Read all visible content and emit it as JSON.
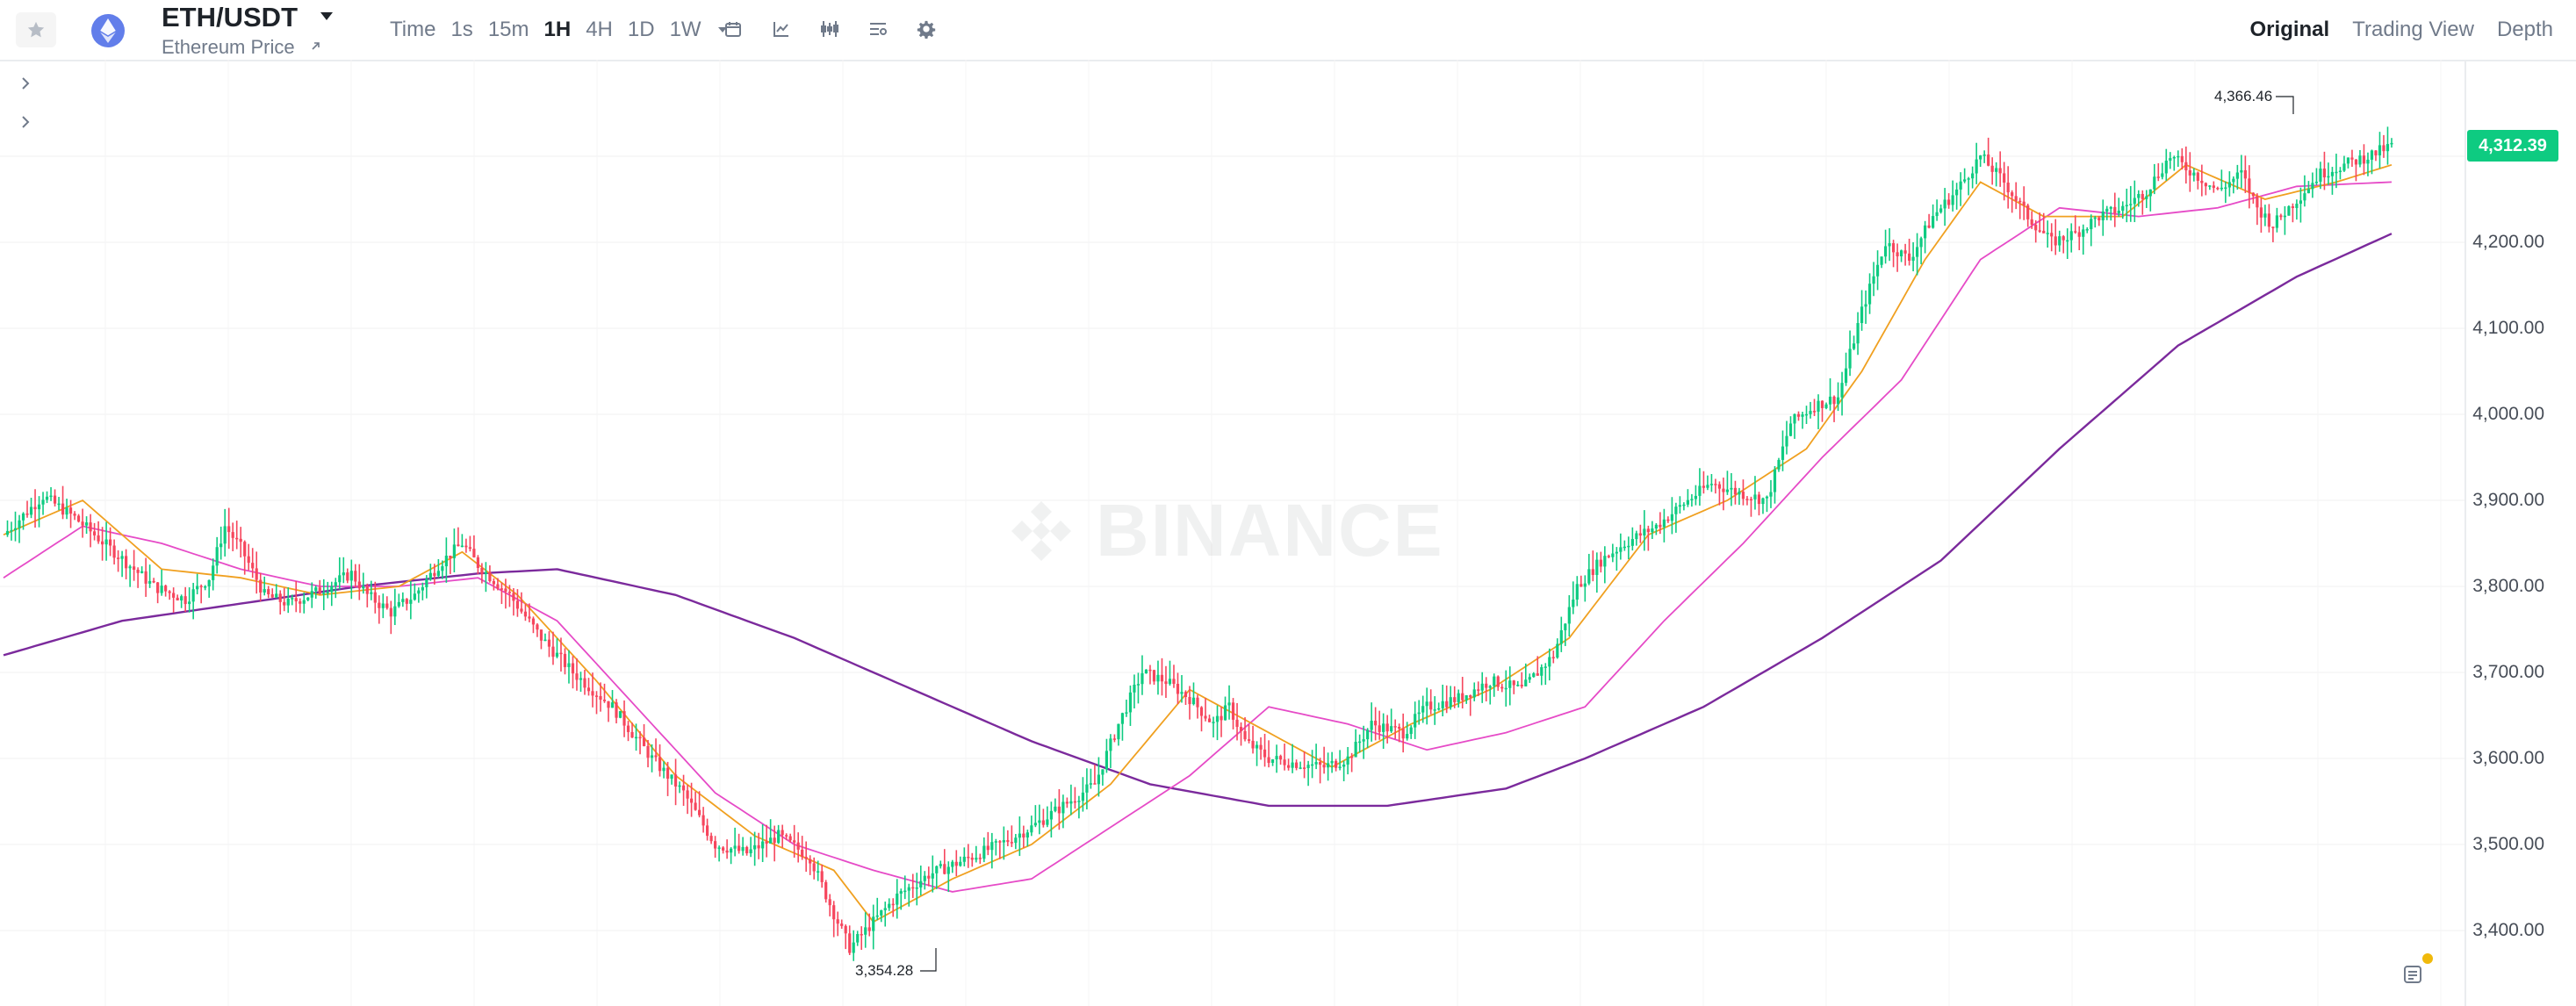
{
  "header": {
    "pair": "ETH/USDT",
    "subtitle": "Ethereum Price",
    "intervals": [
      "Time",
      "1s",
      "15m",
      "1H",
      "4H",
      "1D",
      "1W"
    ],
    "active_interval": "1H",
    "views": [
      "Original",
      "Trading View",
      "Depth"
    ],
    "active_view": "Original"
  },
  "icons": {
    "favorite": "star-icon",
    "coin": "ethereum-logo-icon",
    "pair_menu": "caret-down-icon",
    "external": "external-link-icon",
    "more_intervals": "caret-down-icon",
    "tools": [
      "calendar-icon",
      "indicator-icon",
      "candlestick-type-icon",
      "chart-settings-list-icon",
      "gear-icon"
    ],
    "side": [
      "chevron-right-icon",
      "chevron-right-icon"
    ],
    "corner": "orders-list-icon"
  },
  "colors": {
    "up": "#0ecb81",
    "down": "#f6465d",
    "ma_fast": "#f0a020",
    "ma_mid": "#e64bc7",
    "ma_slow": "#7b2a9c"
  },
  "chart": {
    "y_ticks": [
      "4,200.00",
      "4,100.00",
      "4,000.00",
      "3,900.00",
      "3,800.00",
      "3,700.00",
      "3,600.00",
      "3,500.00",
      "3,400.00"
    ],
    "current_price": "4,312.39",
    "high_label": "4,366.46",
    "low_label": "3,354.28",
    "watermark": "BINANCE"
  },
  "chart_data": {
    "type": "candlestick",
    "interval": "1H",
    "y_range": [
      3330,
      4390
    ],
    "close_path": [
      [
        0,
        3860
      ],
      [
        10,
        3905
      ],
      [
        18,
        3880
      ],
      [
        28,
        3840
      ],
      [
        38,
        3800
      ],
      [
        46,
        3785
      ],
      [
        52,
        3810
      ],
      [
        56,
        3870
      ],
      [
        60,
        3845
      ],
      [
        66,
        3790
      ],
      [
        72,
        3780
      ],
      [
        80,
        3795
      ],
      [
        88,
        3815
      ],
      [
        92,
        3790
      ],
      [
        98,
        3770
      ],
      [
        104,
        3790
      ],
      [
        110,
        3825
      ],
      [
        116,
        3850
      ],
      [
        120,
        3825
      ],
      [
        128,
        3790
      ],
      [
        136,
        3740
      ],
      [
        144,
        3700
      ],
      [
        154,
        3660
      ],
      [
        164,
        3600
      ],
      [
        172,
        3560
      ],
      [
        180,
        3500
      ],
      [
        188,
        3490
      ],
      [
        196,
        3510
      ],
      [
        204,
        3485
      ],
      [
        210,
        3420
      ],
      [
        214,
        3380
      ],
      [
        218,
        3400
      ],
      [
        226,
        3440
      ],
      [
        234,
        3465
      ],
      [
        242,
        3480
      ],
      [
        252,
        3500
      ],
      [
        260,
        3520
      ],
      [
        268,
        3545
      ],
      [
        276,
        3570
      ],
      [
        282,
        3640
      ],
      [
        288,
        3700
      ],
      [
        294,
        3690
      ],
      [
        300,
        3670
      ],
      [
        306,
        3640
      ],
      [
        310,
        3660
      ],
      [
        314,
        3620
      ],
      [
        320,
        3600
      ],
      [
        326,
        3595
      ],
      [
        334,
        3590
      ],
      [
        340,
        3600
      ],
      [
        346,
        3640
      ],
      [
        354,
        3630
      ],
      [
        360,
        3660
      ],
      [
        368,
        3670
      ],
      [
        376,
        3690
      ],
      [
        384,
        3680
      ],
      [
        392,
        3720
      ],
      [
        398,
        3800
      ],
      [
        404,
        3830
      ],
      [
        410,
        3850
      ],
      [
        418,
        3870
      ],
      [
        426,
        3900
      ],
      [
        432,
        3920
      ],
      [
        438,
        3910
      ],
      [
        446,
        3900
      ],
      [
        452,
        3990
      ],
      [
        458,
        4010
      ],
      [
        464,
        4020
      ],
      [
        470,
        4120
      ],
      [
        476,
        4200
      ],
      [
        482,
        4180
      ],
      [
        488,
        4230
      ],
      [
        494,
        4260
      ],
      [
        500,
        4300
      ],
      [
        506,
        4270
      ],
      [
        512,
        4230
      ],
      [
        518,
        4200
      ],
      [
        524,
        4210
      ],
      [
        530,
        4230
      ],
      [
        536,
        4240
      ],
      [
        542,
        4260
      ],
      [
        548,
        4300
      ],
      [
        554,
        4280
      ],
      [
        560,
        4260
      ],
      [
        566,
        4280
      ],
      [
        570,
        4240
      ],
      [
        574,
        4220
      ],
      [
        580,
        4250
      ],
      [
        586,
        4280
      ],
      [
        592,
        4290
      ],
      [
        598,
        4300
      ],
      [
        604,
        4312
      ]
    ],
    "ma_fast": [
      [
        0,
        3860
      ],
      [
        20,
        3900
      ],
      [
        40,
        3820
      ],
      [
        60,
        3810
      ],
      [
        80,
        3790
      ],
      [
        100,
        3800
      ],
      [
        116,
        3840
      ],
      [
        130,
        3790
      ],
      [
        150,
        3690
      ],
      [
        170,
        3580
      ],
      [
        190,
        3510
      ],
      [
        210,
        3470
      ],
      [
        220,
        3410
      ],
      [
        240,
        3460
      ],
      [
        260,
        3500
      ],
      [
        280,
        3570
      ],
      [
        300,
        3680
      ],
      [
        316,
        3640
      ],
      [
        336,
        3590
      ],
      [
        356,
        3640
      ],
      [
        376,
        3680
      ],
      [
        396,
        3740
      ],
      [
        416,
        3860
      ],
      [
        436,
        3900
      ],
      [
        456,
        3960
      ],
      [
        470,
        4050
      ],
      [
        486,
        4180
      ],
      [
        500,
        4270
      ],
      [
        516,
        4230
      ],
      [
        536,
        4230
      ],
      [
        552,
        4290
      ],
      [
        572,
        4250
      ],
      [
        590,
        4270
      ],
      [
        604,
        4290
      ]
    ],
    "ma_mid": [
      [
        0,
        3810
      ],
      [
        20,
        3870
      ],
      [
        40,
        3850
      ],
      [
        60,
        3820
      ],
      [
        80,
        3800
      ],
      [
        100,
        3800
      ],
      [
        120,
        3810
      ],
      [
        140,
        3760
      ],
      [
        160,
        3660
      ],
      [
        180,
        3560
      ],
      [
        200,
        3500
      ],
      [
        220,
        3470
      ],
      [
        240,
        3445
      ],
      [
        260,
        3460
      ],
      [
        280,
        3520
      ],
      [
        300,
        3580
      ],
      [
        320,
        3660
      ],
      [
        340,
        3640
      ],
      [
        360,
        3610
      ],
      [
        380,
        3630
      ],
      [
        400,
        3660
      ],
      [
        420,
        3760
      ],
      [
        440,
        3850
      ],
      [
        460,
        3950
      ],
      [
        480,
        4040
      ],
      [
        500,
        4180
      ],
      [
        520,
        4240
      ],
      [
        540,
        4230
      ],
      [
        560,
        4240
      ],
      [
        580,
        4265
      ],
      [
        604,
        4270
      ]
    ],
    "ma_slow": [
      [
        0,
        3720
      ],
      [
        30,
        3760
      ],
      [
        60,
        3780
      ],
      [
        90,
        3800
      ],
      [
        120,
        3815
      ],
      [
        140,
        3820
      ],
      [
        170,
        3790
      ],
      [
        200,
        3740
      ],
      [
        230,
        3680
      ],
      [
        260,
        3620
      ],
      [
        290,
        3570
      ],
      [
        320,
        3545
      ],
      [
        350,
        3545
      ],
      [
        380,
        3565
      ],
      [
        400,
        3600
      ],
      [
        430,
        3660
      ],
      [
        460,
        3740
      ],
      [
        490,
        3830
      ],
      [
        520,
        3960
      ],
      [
        550,
        4080
      ],
      [
        580,
        4160
      ],
      [
        604,
        4210
      ]
    ]
  }
}
